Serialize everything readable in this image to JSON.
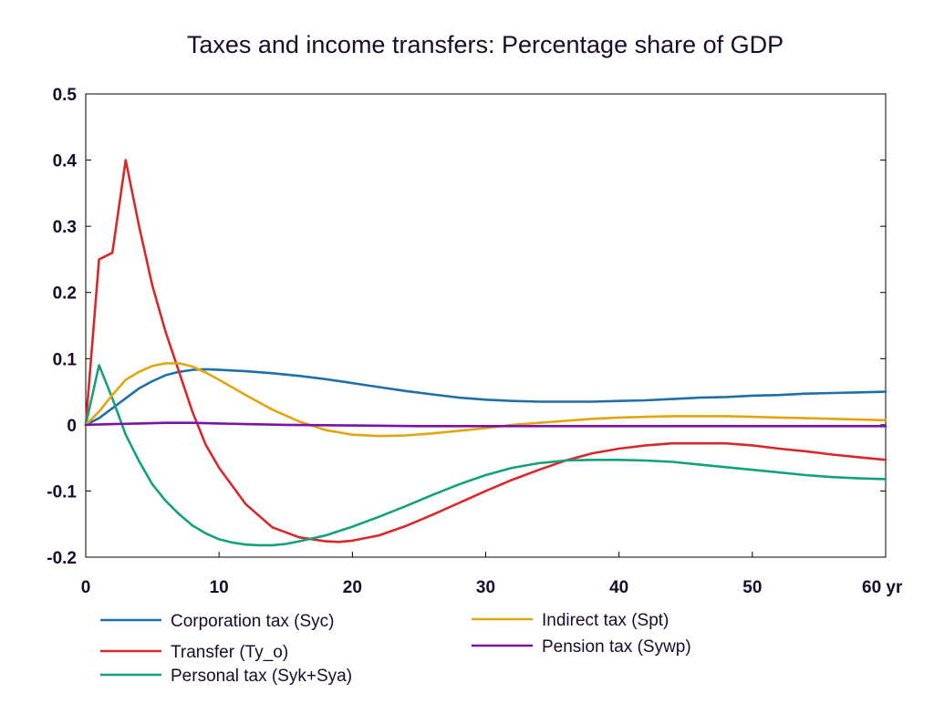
{
  "chart_data": {
    "type": "line",
    "title": "Taxes and income transfers: Percentage share of GDP",
    "xlabel": "",
    "ylabel": "",
    "xlim": [
      0,
      60
    ],
    "ylim": [
      -0.2,
      0.5
    ],
    "x_ticks": [
      {
        "value": 0,
        "label": "0"
      },
      {
        "value": 10,
        "label": "10"
      },
      {
        "value": 20,
        "label": "20"
      },
      {
        "value": 30,
        "label": "30"
      },
      {
        "value": 40,
        "label": "40"
      },
      {
        "value": 50,
        "label": "50"
      },
      {
        "value": 60,
        "label": "60 yr"
      }
    ],
    "y_ticks": [
      {
        "value": 0.5,
        "label": "0.5"
      },
      {
        "value": 0.4,
        "label": "0.4"
      },
      {
        "value": 0.3,
        "label": "0.3"
      },
      {
        "value": 0.2,
        "label": "0.2"
      },
      {
        "value": 0.1,
        "label": "0.1"
      },
      {
        "value": 0,
        "label": "0"
      },
      {
        "value": -0.1,
        "label": "-0.1"
      },
      {
        "value": -0.2,
        "label": "-0.2"
      }
    ],
    "grid": false,
    "legend_position": "bottom",
    "series": [
      {
        "name": "Corporation tax (Syc)",
        "color": "#1f6fa8",
        "x": [
          0,
          1,
          2,
          3,
          4,
          5,
          6,
          7,
          8,
          9,
          10,
          12,
          14,
          16,
          18,
          20,
          22,
          24,
          26,
          28,
          30,
          32,
          34,
          36,
          38,
          40,
          42,
          44,
          46,
          48,
          50,
          52,
          54,
          56,
          58,
          60
        ],
        "y": [
          0,
          0.01,
          0.025,
          0.04,
          0.055,
          0.066,
          0.075,
          0.08,
          0.083,
          0.084,
          0.083,
          0.081,
          0.078,
          0.074,
          0.069,
          0.063,
          0.057,
          0.051,
          0.046,
          0.041,
          0.038,
          0.036,
          0.035,
          0.035,
          0.035,
          0.036,
          0.037,
          0.039,
          0.041,
          0.042,
          0.044,
          0.045,
          0.047,
          0.048,
          0.049,
          0.05
        ]
      },
      {
        "name": "Transfer (Ty_o)",
        "color": "#d8282a",
        "x": [
          0,
          1,
          2,
          3,
          4,
          5,
          6,
          7,
          8,
          9,
          10,
          12,
          14,
          16,
          18,
          19,
          20,
          22,
          24,
          26,
          28,
          30,
          32,
          34,
          36,
          38,
          40,
          42,
          44,
          46,
          48,
          50,
          52,
          54,
          56,
          58,
          60
        ],
        "y": [
          0,
          0.25,
          0.26,
          0.4,
          0.3,
          0.21,
          0.14,
          0.08,
          0.02,
          -0.03,
          -0.065,
          -0.12,
          -0.155,
          -0.17,
          -0.176,
          -0.177,
          -0.175,
          -0.167,
          -0.153,
          -0.136,
          -0.118,
          -0.1,
          -0.083,
          -0.068,
          -0.054,
          -0.043,
          -0.036,
          -0.031,
          -0.028,
          -0.028,
          -0.028,
          -0.031,
          -0.036,
          -0.04,
          -0.045,
          -0.049,
          -0.053
        ]
      },
      {
        "name": "Personal tax (Syk+Sya)",
        "color": "#12a07d",
        "x": [
          0,
          1,
          2,
          3,
          4,
          5,
          6,
          7,
          8,
          9,
          10,
          11,
          12,
          13,
          14,
          15,
          16,
          18,
          20,
          22,
          24,
          26,
          28,
          30,
          32,
          34,
          36,
          38,
          40,
          42,
          44,
          46,
          48,
          50,
          52,
          54,
          56,
          58,
          60
        ],
        "y": [
          0,
          0.09,
          0.04,
          -0.015,
          -0.055,
          -0.09,
          -0.115,
          -0.135,
          -0.152,
          -0.164,
          -0.173,
          -0.178,
          -0.181,
          -0.182,
          -0.182,
          -0.18,
          -0.176,
          -0.167,
          -0.154,
          -0.139,
          -0.123,
          -0.106,
          -0.09,
          -0.076,
          -0.065,
          -0.058,
          -0.054,
          -0.053,
          -0.053,
          -0.054,
          -0.056,
          -0.06,
          -0.064,
          -0.068,
          -0.072,
          -0.076,
          -0.079,
          -0.081,
          -0.082
        ]
      },
      {
        "name": "Indirect tax (Spt)",
        "color": "#e2a50e",
        "x": [
          0,
          1,
          2,
          3,
          4,
          5,
          6,
          7,
          8,
          9,
          10,
          12,
          14,
          16,
          18,
          20,
          22,
          24,
          26,
          28,
          30,
          32,
          34,
          36,
          38,
          40,
          42,
          44,
          46,
          48,
          50,
          52,
          54,
          56,
          58,
          60
        ],
        "y": [
          0,
          0.02,
          0.045,
          0.068,
          0.08,
          0.089,
          0.093,
          0.093,
          0.088,
          0.079,
          0.068,
          0.045,
          0.023,
          0.005,
          -0.008,
          -0.015,
          -0.017,
          -0.016,
          -0.013,
          -0.009,
          -0.005,
          0,
          0.003,
          0.006,
          0.009,
          0.011,
          0.012,
          0.013,
          0.013,
          0.013,
          0.012,
          0.011,
          0.01,
          0.009,
          0.008,
          0.007
        ]
      },
      {
        "name": "Pension tax (Sywp)",
        "color": "#7b12a8",
        "x": [
          0,
          2,
          4,
          6,
          8,
          10,
          12,
          15,
          20,
          25,
          30,
          40,
          50,
          60
        ],
        "y": [
          0,
          0.001,
          0.002,
          0.003,
          0.003,
          0.002,
          0.001,
          0,
          -0.001,
          -0.002,
          -0.002,
          -0.002,
          -0.002,
          -0.002
        ]
      }
    ]
  }
}
